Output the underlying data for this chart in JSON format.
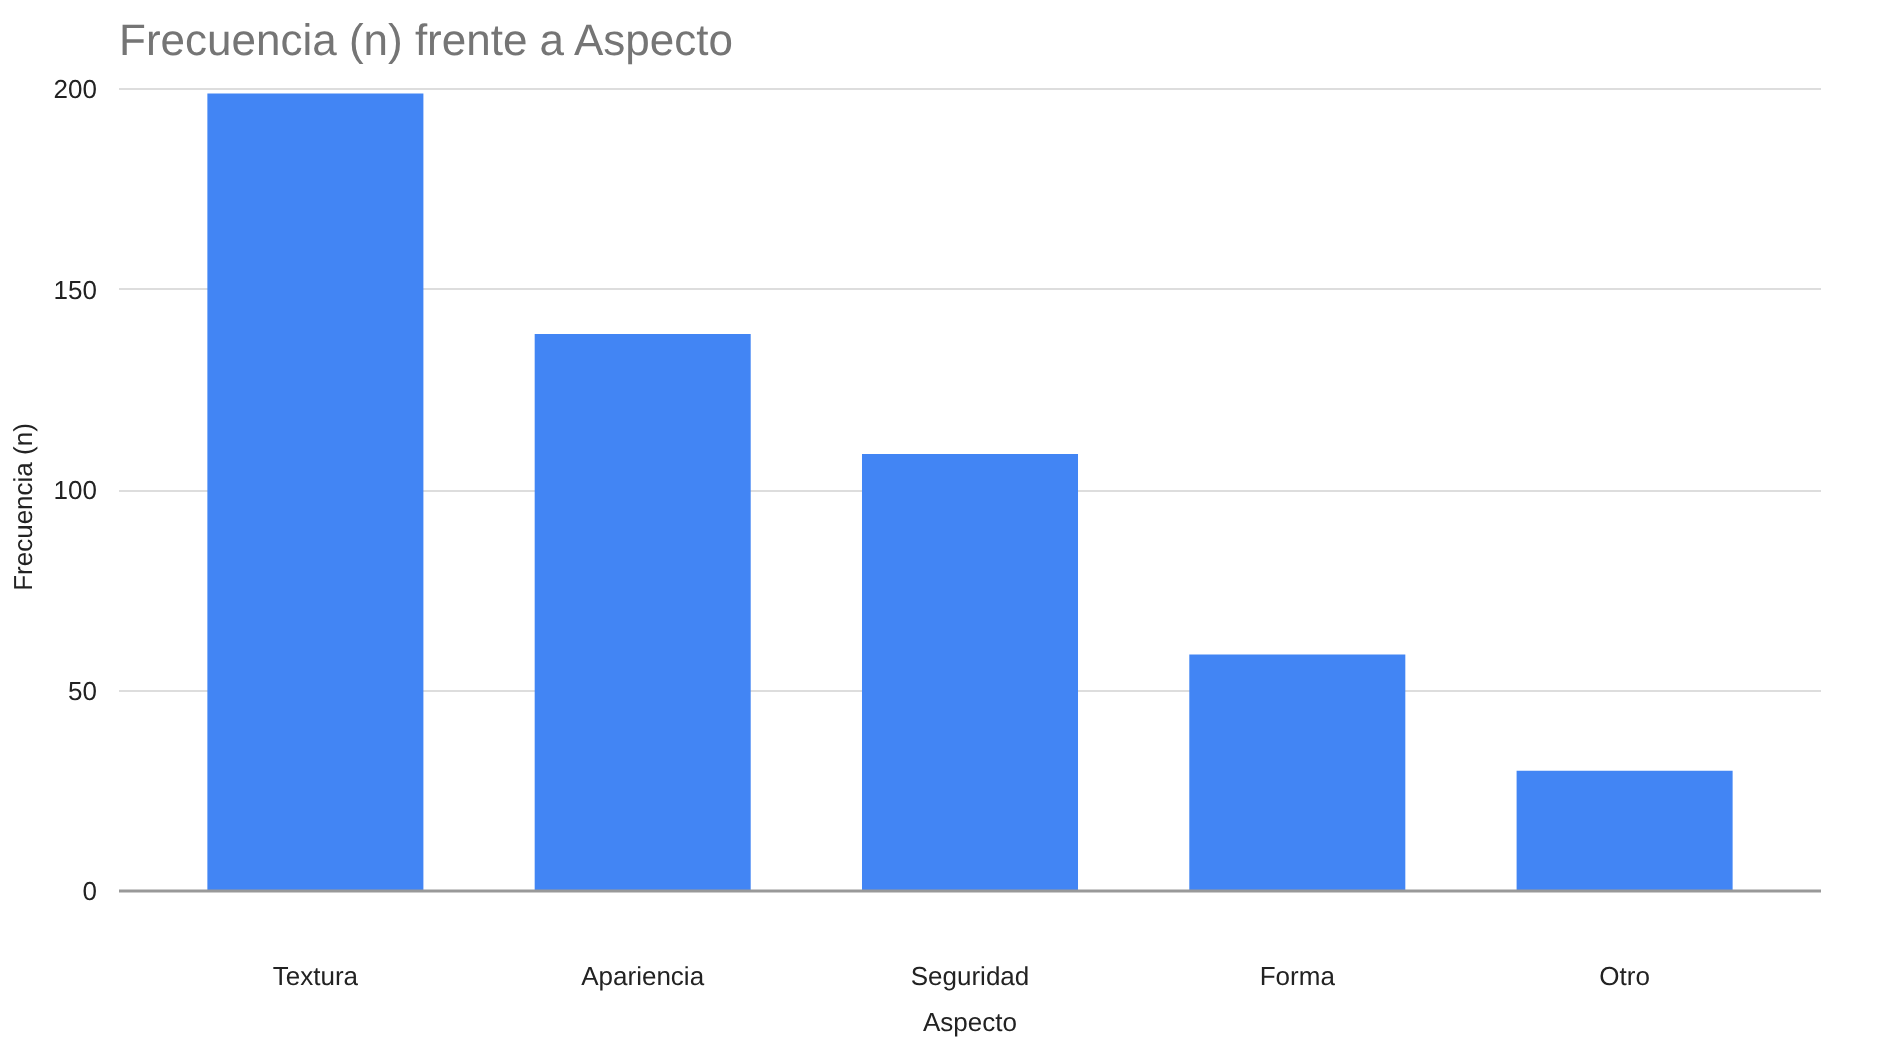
{
  "chart_data": {
    "type": "bar",
    "title": "Frecuencia (n) frente a Aspecto",
    "xlabel": "Aspecto",
    "ylabel": "Frecuencia (n)",
    "categories": [
      "Textura",
      "Apariencia",
      "Seguridad",
      "Forma",
      "Otro"
    ],
    "values": [
      199,
      139,
      109,
      59,
      30
    ],
    "color": "#4285f4",
    "ylim": [
      0,
      200
    ],
    "yticks": [
      0,
      50,
      100,
      150,
      200
    ],
    "grid": "y"
  }
}
